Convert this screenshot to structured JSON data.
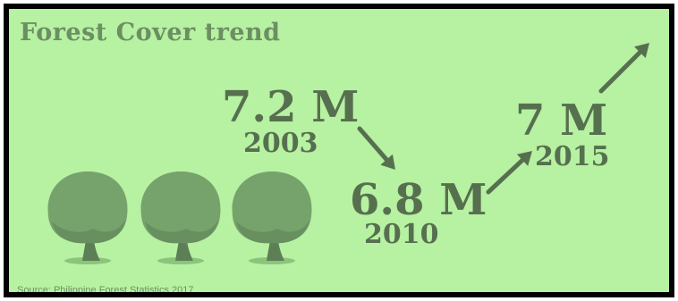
{
  "title": "Forest Cover trend",
  "source": "Source: Philippine Forest Statistics 2017",
  "colors": {
    "background": "#b7f1a2",
    "border": "#000000",
    "text": "#56704f",
    "tree_canopy": "#76a36b",
    "tree_trunk": "#5d7f56"
  },
  "icons": [
    "tree-icon",
    "arrow-down-right-icon",
    "arrow-up-right-icon"
  ],
  "chart_data": {
    "type": "line",
    "title": "Forest Cover trend",
    "x": [
      "2003",
      "2010",
      "2015"
    ],
    "values": [
      7.2,
      6.8,
      7.0
    ],
    "value_labels": [
      "7.2 M",
      "6.8 M",
      "7 M"
    ],
    "trend_after_last": "up"
  }
}
